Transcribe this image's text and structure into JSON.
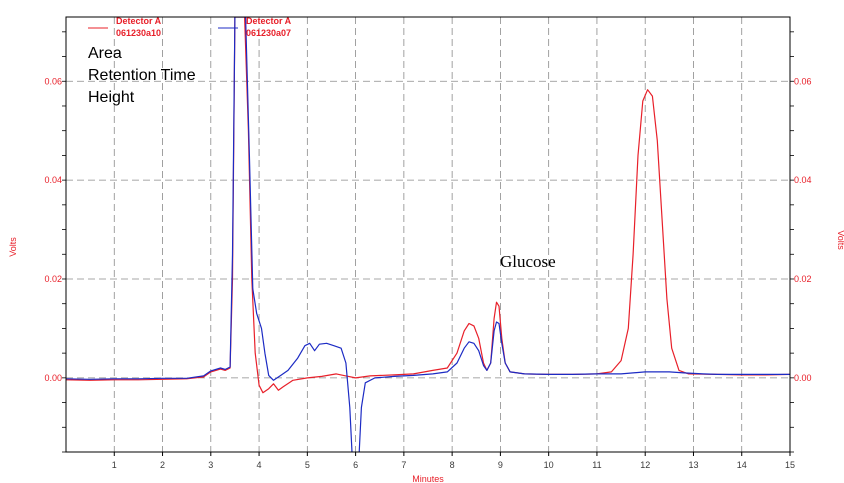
{
  "chart_data": {
    "type": "line",
    "xlabel": "Minutes",
    "ylabel_left": "Volts",
    "ylabel_right": "Volts",
    "xlim": [
      0,
      15
    ],
    "ylim": [
      -0.015,
      0.073
    ],
    "x_ticks": [
      "1",
      "2",
      "3",
      "4",
      "5",
      "6",
      "7",
      "8",
      "9",
      "10",
      "11",
      "12",
      "13",
      "14",
      "15"
    ],
    "y_ticks": [
      "0.00",
      "0.02",
      "0.04",
      "0.06"
    ],
    "grid": true,
    "text_annotations": [
      "Area",
      "Retention Time",
      "Height"
    ],
    "peak_label": "Glucose",
    "legend": [
      {
        "line1": "Detector A",
        "line2": "061230a10",
        "color": "#e8202a"
      },
      {
        "line1": "Detector A",
        "line2": "061230a07",
        "color": "#1c2bc4"
      }
    ],
    "series": [
      {
        "name": "Detector A 061230a10",
        "color": "#e8202a",
        "points": [
          [
            0,
            -0.0004
          ],
          [
            0.5,
            -0.0005
          ],
          [
            1,
            -0.0004
          ],
          [
            1.5,
            -0.0004
          ],
          [
            2,
            -0.0003
          ],
          [
            2.5,
            -0.0002
          ],
          [
            2.85,
            0.0002
          ],
          [
            3.0,
            0.0012
          ],
          [
            3.2,
            0.0018
          ],
          [
            3.3,
            0.0015
          ],
          [
            3.4,
            0.002
          ],
          [
            3.45,
            0.02
          ],
          [
            3.5,
            0.073
          ],
          [
            3.7,
            0.073
          ],
          [
            3.78,
            0.05
          ],
          [
            3.85,
            0.02
          ],
          [
            3.92,
            0.005
          ],
          [
            4.0,
            -0.0015
          ],
          [
            4.08,
            -0.003
          ],
          [
            4.2,
            -0.0022
          ],
          [
            4.3,
            -0.0012
          ],
          [
            4.4,
            -0.0025
          ],
          [
            4.5,
            -0.0018
          ],
          [
            4.7,
            -0.0005
          ],
          [
            5.0,
            0.0
          ],
          [
            5.3,
            0.0003
          ],
          [
            5.6,
            0.0008
          ],
          [
            5.8,
            0.0004
          ],
          [
            6.0,
            0.0
          ],
          [
            6.3,
            0.0004
          ],
          [
            6.8,
            0.0006
          ],
          [
            7.2,
            0.0008
          ],
          [
            7.6,
            0.0015
          ],
          [
            7.9,
            0.002
          ],
          [
            8.1,
            0.005
          ],
          [
            8.25,
            0.0095
          ],
          [
            8.35,
            0.011
          ],
          [
            8.45,
            0.0105
          ],
          [
            8.55,
            0.008
          ],
          [
            8.65,
            0.003
          ],
          [
            8.72,
            0.0015
          ],
          [
            8.8,
            0.003
          ],
          [
            8.87,
            0.012
          ],
          [
            8.92,
            0.0153
          ],
          [
            8.97,
            0.0145
          ],
          [
            9.03,
            0.008
          ],
          [
            9.1,
            0.003
          ],
          [
            9.2,
            0.0012
          ],
          [
            9.5,
            0.0008
          ],
          [
            10,
            0.0007
          ],
          [
            10.5,
            0.0007
          ],
          [
            11.0,
            0.0008
          ],
          [
            11.3,
            0.0012
          ],
          [
            11.5,
            0.0035
          ],
          [
            11.65,
            0.01
          ],
          [
            11.75,
            0.025
          ],
          [
            11.85,
            0.045
          ],
          [
            11.95,
            0.056
          ],
          [
            12.05,
            0.0583
          ],
          [
            12.15,
            0.057
          ],
          [
            12.25,
            0.048
          ],
          [
            12.35,
            0.032
          ],
          [
            12.45,
            0.016
          ],
          [
            12.55,
            0.006
          ],
          [
            12.7,
            0.0015
          ],
          [
            12.9,
            0.0008
          ],
          [
            13.5,
            0.0007
          ],
          [
            14,
            0.0006
          ],
          [
            14.5,
            0.0006
          ],
          [
            15,
            0.0007
          ]
        ]
      },
      {
        "name": "Detector A 061230a07",
        "color": "#1c2bc4",
        "points": [
          [
            0,
            -0.0002
          ],
          [
            0.5,
            -0.0003
          ],
          [
            1,
            -0.0002
          ],
          [
            1.5,
            -0.0002
          ],
          [
            2,
            -0.0001
          ],
          [
            2.5,
            -0.0001
          ],
          [
            2.85,
            0.0004
          ],
          [
            3.0,
            0.0014
          ],
          [
            3.2,
            0.002
          ],
          [
            3.3,
            0.0017
          ],
          [
            3.4,
            0.0022
          ],
          [
            3.45,
            0.025
          ],
          [
            3.5,
            0.073
          ],
          [
            3.72,
            0.073
          ],
          [
            3.8,
            0.045
          ],
          [
            3.87,
            0.018
          ],
          [
            3.95,
            0.013
          ],
          [
            4.05,
            0.01
          ],
          [
            4.12,
            0.005
          ],
          [
            4.2,
            0.0005
          ],
          [
            4.3,
            -0.0005
          ],
          [
            4.45,
            0.0005
          ],
          [
            4.6,
            0.0015
          ],
          [
            4.8,
            0.004
          ],
          [
            4.95,
            0.0065
          ],
          [
            5.05,
            0.007
          ],
          [
            5.15,
            0.0055
          ],
          [
            5.25,
            0.0068
          ],
          [
            5.4,
            0.007
          ],
          [
            5.55,
            0.0065
          ],
          [
            5.7,
            0.006
          ],
          [
            5.8,
            0.003
          ],
          [
            5.88,
            -0.006
          ],
          [
            5.95,
            -0.02
          ],
          [
            6.05,
            -0.02
          ],
          [
            6.12,
            -0.006
          ],
          [
            6.2,
            -0.001
          ],
          [
            6.4,
            0.0
          ],
          [
            6.8,
            0.0003
          ],
          [
            7.2,
            0.0005
          ],
          [
            7.6,
            0.0008
          ],
          [
            7.9,
            0.0012
          ],
          [
            8.1,
            0.003
          ],
          [
            8.25,
            0.006
          ],
          [
            8.35,
            0.0073
          ],
          [
            8.45,
            0.007
          ],
          [
            8.55,
            0.0055
          ],
          [
            8.65,
            0.0025
          ],
          [
            8.72,
            0.0015
          ],
          [
            8.8,
            0.003
          ],
          [
            8.87,
            0.0095
          ],
          [
            8.92,
            0.0113
          ],
          [
            8.97,
            0.011
          ],
          [
            9.03,
            0.007
          ],
          [
            9.1,
            0.003
          ],
          [
            9.2,
            0.0012
          ],
          [
            9.5,
            0.0008
          ],
          [
            10,
            0.0007
          ],
          [
            10.5,
            0.0007
          ],
          [
            11.0,
            0.0008
          ],
          [
            11.5,
            0.0008
          ],
          [
            12.0,
            0.0012
          ],
          [
            12.5,
            0.0012
          ],
          [
            12.8,
            0.001
          ],
          [
            13.2,
            0.0008
          ],
          [
            13.5,
            0.0007
          ],
          [
            14,
            0.0007
          ],
          [
            14.5,
            0.0007
          ],
          [
            15,
            0.0007
          ]
        ]
      }
    ]
  },
  "colors": {
    "axis_text": "#e8202a",
    "tick_text": "#3a3a3a",
    "grid": "#8a8a8a"
  }
}
